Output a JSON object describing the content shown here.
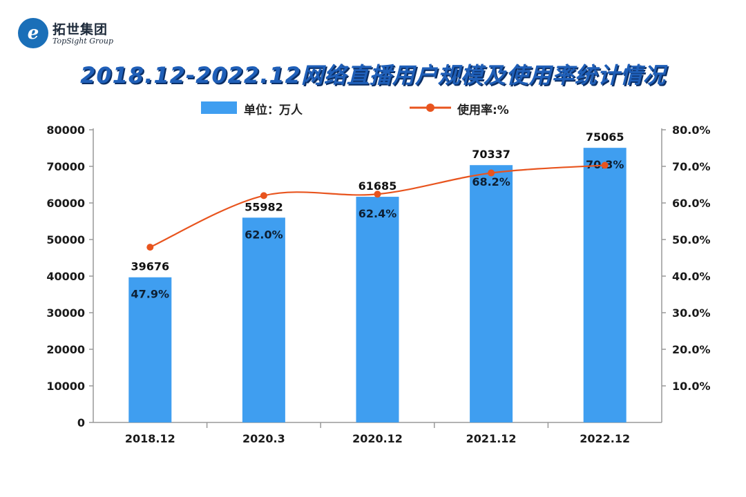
{
  "brand": {
    "logo_text_cn": "拓世集团",
    "logo_text_en": "TopSight Group",
    "logo_mark": "e"
  },
  "chart_data": {
    "type": "bar",
    "title": "2018.12-2022.12网络直播用户规模及使用率统计情况",
    "categories": [
      "2018.12",
      "2020.3",
      "2020.12",
      "2021.12",
      "2022.12"
    ],
    "series": [
      {
        "name": "单位：万人",
        "kind": "bar",
        "axis": "left",
        "values": [
          39676,
          55982,
          61685,
          70337,
          75065
        ],
        "color": "#3f9ef0"
      },
      {
        "name": "使用率:%",
        "kind": "line",
        "axis": "right",
        "values": [
          47.9,
          62.0,
          62.4,
          68.2,
          70.3
        ],
        "color": "#e8541e"
      }
    ],
    "y_left": {
      "ylim": [
        0,
        80000
      ],
      "ticks": [
        "0",
        "10000",
        "20000",
        "30000",
        "40000",
        "50000",
        "60000",
        "70000",
        "80000"
      ]
    },
    "y_right": {
      "ticks": [
        "10.0%",
        "20.0%",
        "30.0%",
        "40.0%",
        "50.0%",
        "60.0%",
        "70.0%",
        "80.0%"
      ]
    },
    "bar_labels": [
      "39676",
      "55982",
      "61685",
      "70337",
      "75065"
    ],
    "rate_labels": [
      "47.9%",
      "62.0%",
      "62.4%",
      "68.2%",
      "70.3%"
    ],
    "xlabel": "",
    "ylabel": "",
    "legend_position": "top-center",
    "grid": false
  }
}
